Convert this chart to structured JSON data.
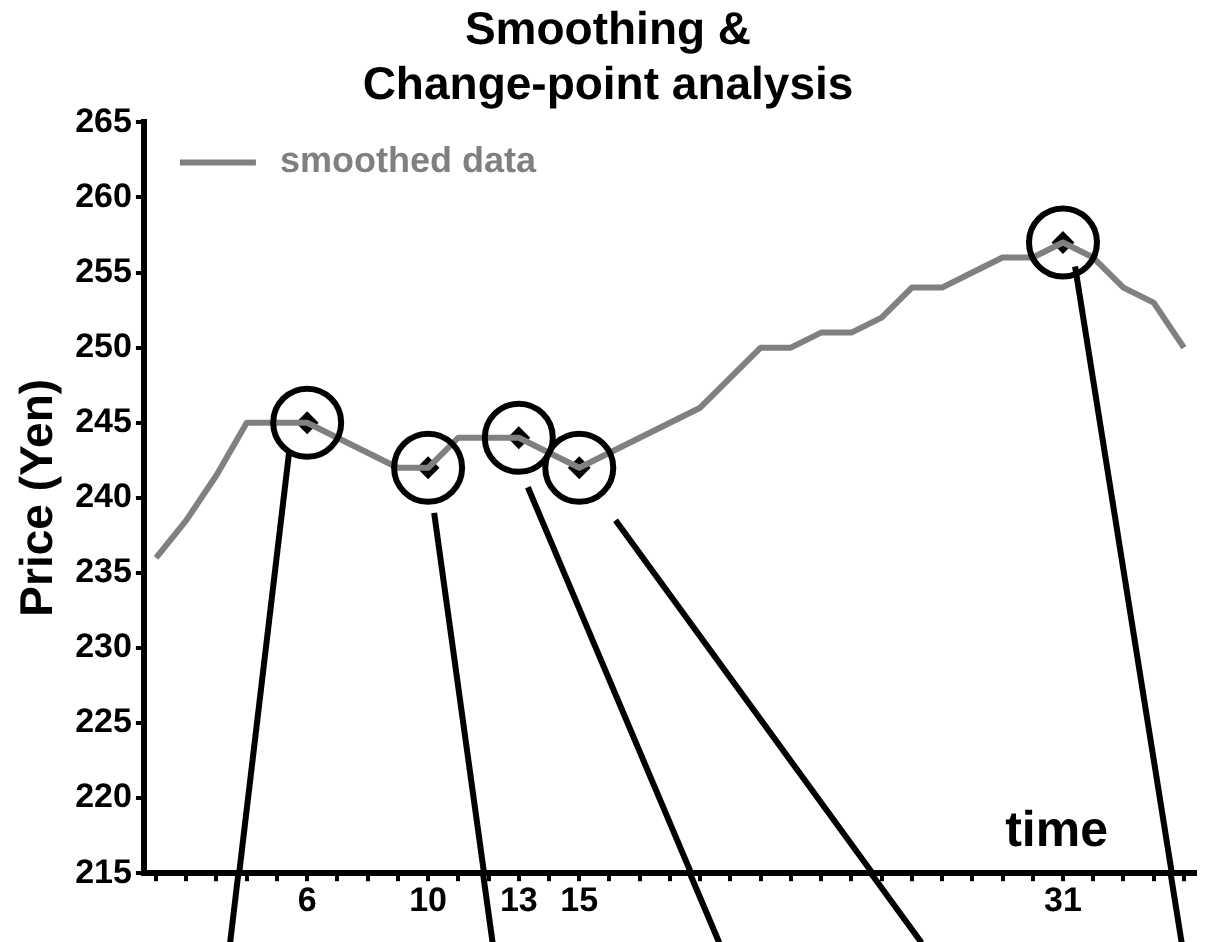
{
  "chart_data": {
    "type": "line",
    "title": "Smoothing &\nChange-point analysis",
    "xlabel": "time",
    "ylabel": "Price (Yen)",
    "xlim": [
      0.6,
      35.4
    ],
    "ylim": [
      215,
      265
    ],
    "xticks": [
      {
        "value": 1,
        "label": null
      },
      {
        "value": 2,
        "label": null
      },
      {
        "value": 3,
        "label": null
      },
      {
        "value": 4,
        "label": null
      },
      {
        "value": 5,
        "label": null
      },
      6,
      {
        "value": 7,
        "label": null
      },
      {
        "value": 8,
        "label": null
      },
      {
        "value": 9,
        "label": null
      },
      10,
      {
        "value": 11,
        "label": null
      },
      {
        "value": 12,
        "label": null
      },
      13,
      {
        "value": 14,
        "label": null
      },
      15,
      {
        "value": 16,
        "label": null
      },
      {
        "value": 17,
        "label": null
      },
      {
        "value": 18,
        "label": null
      },
      {
        "value": 19,
        "label": null
      },
      {
        "value": 20,
        "label": null
      },
      {
        "value": 21,
        "label": null
      },
      {
        "value": 22,
        "label": null
      },
      {
        "value": 23,
        "label": null
      },
      {
        "value": 24,
        "label": null
      },
      {
        "value": 25,
        "label": null
      },
      {
        "value": 26,
        "label": null
      },
      {
        "value": 27,
        "label": null
      },
      {
        "value": 28,
        "label": null
      },
      {
        "value": 29,
        "label": null
      },
      {
        "value": 30,
        "label": null
      },
      31,
      {
        "value": 32,
        "label": null
      },
      {
        "value": 33,
        "label": null
      },
      {
        "value": 34,
        "label": null
      },
      {
        "value": 35,
        "label": null
      }
    ],
    "yticks": [
      215,
      220,
      225,
      230,
      235,
      240,
      245,
      250,
      255,
      260,
      265
    ],
    "grid": false,
    "legend": "top left",
    "series": [
      {
        "name": "smoothed data",
        "type": "line",
        "color": "#808080",
        "marker": "none",
        "x": [
          1,
          2,
          3,
          4,
          5,
          6,
          7,
          8,
          9,
          10,
          11,
          12,
          13,
          14,
          15,
          16,
          17,
          18,
          19,
          20,
          21,
          22,
          23,
          24,
          25,
          26,
          27,
          28,
          29,
          30,
          31,
          32,
          33,
          34,
          35
        ],
        "values": [
          236,
          238.5,
          241.5,
          245,
          245,
          245,
          244,
          243,
          242,
          242,
          244,
          244,
          244,
          243,
          242,
          243,
          244,
          245,
          246,
          248,
          250,
          250,
          251,
          251,
          252,
          254,
          254,
          255,
          256,
          256,
          257,
          256,
          254,
          253,
          250
        ]
      },
      {
        "type": "scatter",
        "color": "#000000",
        "marker": "diamond",
        "x": [
          6,
          10,
          13,
          15,
          31
        ],
        "values": [
          245,
          242,
          244,
          242,
          257
        ]
      },
      {
        "type": "line",
        "color": "#000000",
        "marker": "none",
        "x": [
          5.4,
          3.75
        ],
        "values": [
          243,
          215
        ]
      },
      {
        "type": "line",
        "color": "#000000",
        "marker": "none",
        "x": [
          10.2,
          11.85
        ],
        "values": [
          239,
          215
        ]
      },
      {
        "type": "line",
        "color": "#000000",
        "marker": "none",
        "x": [
          13.3,
          18.7
        ],
        "values": [
          240.7,
          215
        ]
      },
      {
        "type": "line",
        "color": "#000000",
        "marker": "none",
        "x": [
          16.2,
          24.7
        ],
        "values": [
          238.5,
          215
        ]
      },
      {
        "type": "line",
        "color": "#000000",
        "marker": "none",
        "x": [
          31.4,
          34.6
        ],
        "values": [
          255.4,
          215
        ]
      }
    ]
  }
}
